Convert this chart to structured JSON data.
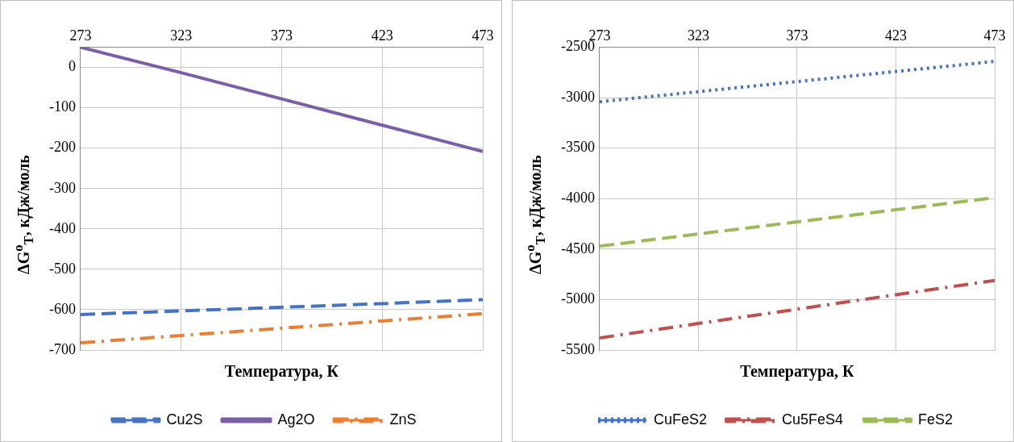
{
  "chart_data": [
    {
      "type": "line",
      "xlabel": "Температура, К",
      "ylabel": "ΔG$^{o}$$_{T}$, кДж/моль",
      "x": [
        273,
        323,
        373,
        423,
        473
      ],
      "xlim": [
        273,
        473
      ],
      "xticks": [
        273,
        323,
        373,
        423,
        473
      ],
      "ylim": [
        -700,
        50
      ],
      "yticks": [
        -700,
        -600,
        -500,
        -400,
        -300,
        -200,
        -100,
        0
      ],
      "grid": true,
      "legend": "bottom",
      "marker": "none",
      "series": [
        {
          "name": "Cu2S",
          "color": "#4472c4",
          "line_style": "dashed",
          "values": [
            -612,
            -603,
            -594,
            -585,
            -575
          ]
        },
        {
          "name": "Ag2O",
          "color": "#7b5ea7",
          "line_style": "solid",
          "values": [
            50,
            -13,
            -78,
            -143,
            -208
          ]
        },
        {
          "name": "ZnS",
          "color": "#ed7d31",
          "line_style": "dashdot",
          "values": [
            -682,
            -664,
            -646,
            -628,
            -610
          ]
        }
      ]
    },
    {
      "type": "line",
      "xlabel": "Температура, К",
      "ylabel": "ΔG$^{o}$$_{T}$, кДж/моль",
      "x": [
        273,
        323,
        373,
        423,
        473
      ],
      "xlim": [
        273,
        473
      ],
      "xticks": [
        273,
        323,
        373,
        423,
        473
      ],
      "ylim": [
        -5500,
        -2500
      ],
      "yticks": [
        -5500,
        -5000,
        -4500,
        -4000,
        -3500,
        -3000,
        -2500
      ],
      "grid": true,
      "legend": "bottom",
      "marker": "none",
      "series": [
        {
          "name": "CuFeS2",
          "color": "#4472c4",
          "line_style": "dotted",
          "values": [
            -3040,
            -2940,
            -2840,
            -2740,
            -2640
          ]
        },
        {
          "name": "Cu5FeS4",
          "color": "#c0504d",
          "line_style": "dashdot",
          "values": [
            -5380,
            -5237,
            -5095,
            -4952,
            -4810
          ]
        },
        {
          "name": "FeS2",
          "color": "#9bbb59",
          "line_style": "dashed",
          "values": [
            -4470,
            -4350,
            -4230,
            -4110,
            -3990
          ]
        }
      ]
    }
  ]
}
